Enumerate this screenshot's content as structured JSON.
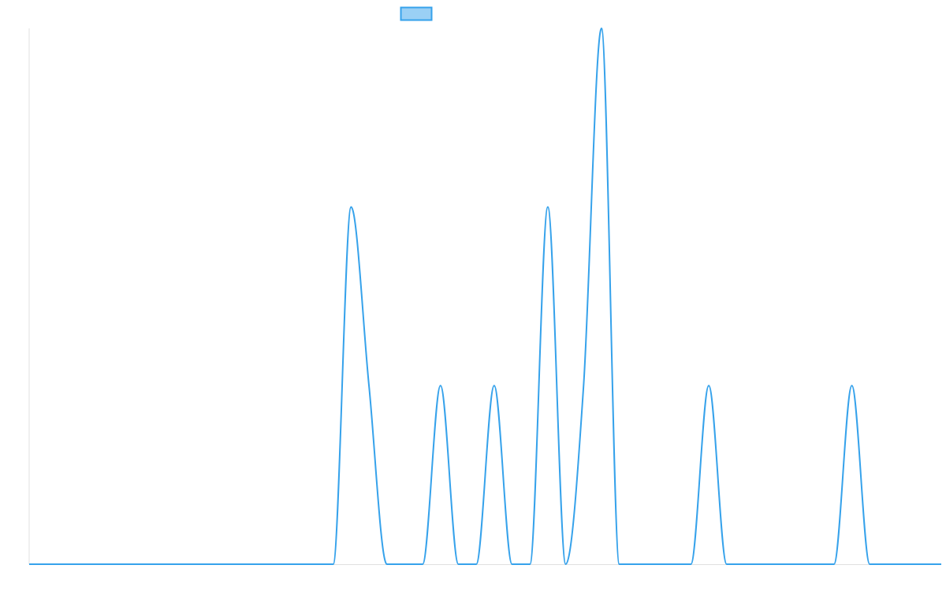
{
  "chart_data": {
    "type": "line",
    "title": "",
    "xlabel": "",
    "ylabel": "",
    "interpolation": "monotone",
    "grid": false,
    "legend": {
      "placement": "top",
      "entries": [
        {
          "name": "",
          "color": "#36a2eb"
        }
      ]
    },
    "ylim": [
      0,
      3
    ],
    "series": [
      {
        "color": "#36a2eb",
        "fill": "#9ad0f5",
        "values": [
          0,
          0,
          0,
          0,
          0,
          0,
          0,
          0,
          0,
          0,
          0,
          0,
          0,
          0,
          0,
          0,
          0,
          0,
          2,
          1,
          0,
          0,
          0,
          1,
          0,
          0,
          1,
          0,
          0,
          2,
          0,
          1,
          3,
          0,
          0,
          0,
          0,
          0,
          1,
          0,
          0,
          0,
          0,
          0,
          0,
          0,
          1,
          0,
          0,
          0,
          0,
          0
        ]
      }
    ]
  }
}
